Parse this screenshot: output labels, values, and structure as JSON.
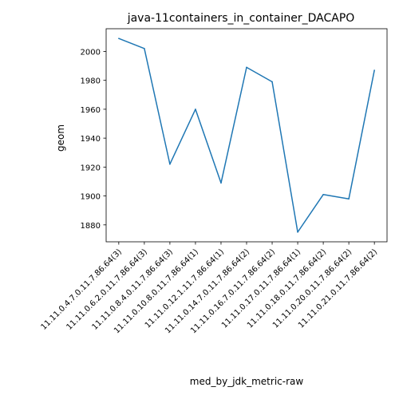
{
  "chart_data": {
    "type": "line",
    "title": "java-11containers_in_container_DACAPO",
    "xlabel": "med_by_jdk_metric-raw",
    "ylabel": "geom",
    "categories": [
      "11.11.0.4.7.0.11.7.86.64(3)",
      "11.11.0.6.2.0.11.7.86.64(3)",
      "11.11.0.8.4.0.11.7.86.64(3)",
      "11.11.0.10.8.0.11.7.86.64(1)",
      "11.11.0.12.1.11.7.86.64(1)",
      "11.11.0.14.7.0.11.7.86.64(2)",
      "11.11.0.16.7.0.11.7.86.64(2)",
      "11.11.0.17.0.11.7.86.64(1)",
      "11.11.0.18.0.11.7.86.64(2)",
      "11.11.0.20.0.11.7.86.64(2)",
      "11.11.0.21.0.11.7.86.64(2)"
    ],
    "series": [
      {
        "values": [
          2009,
          2002,
          1922,
          1960,
          1909,
          1989,
          1979,
          1875,
          1901,
          1898,
          1987
        ]
      }
    ],
    "yticks": [
      1880,
      1900,
      1920,
      1940,
      1960,
      1980,
      2000
    ],
    "ylim": [
      1868.3,
      2015.7
    ],
    "grid": false,
    "legend": "none",
    "line_color": "#1f77b4"
  }
}
